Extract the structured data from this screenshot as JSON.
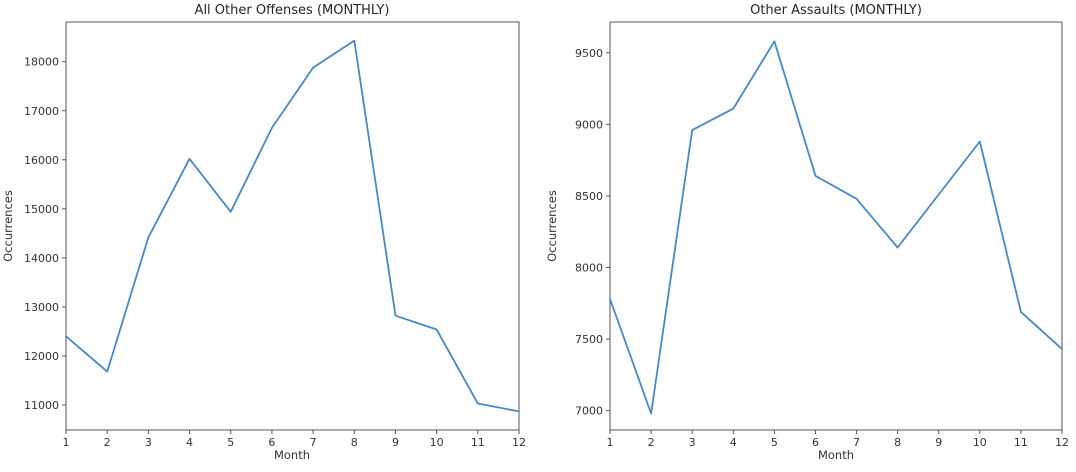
{
  "figure": {
    "background": "#ffffff",
    "text_color": "#333333",
    "spine_color": "#555555"
  },
  "chart_data": [
    {
      "type": "line",
      "title": "All Other Offenses (MONTHLY)",
      "xlabel": "Month",
      "ylabel": "Occurrences",
      "x": [
        1,
        2,
        3,
        4,
        5,
        6,
        7,
        8,
        9,
        10,
        11,
        12
      ],
      "x_tick_labels": [
        "1",
        "2",
        "3",
        "4",
        "5",
        "6",
        "7",
        "8",
        "9",
        "10",
        "11",
        "12"
      ],
      "values": [
        12400,
        11680,
        14420,
        16020,
        14940,
        16650,
        17880,
        18430,
        12820,
        12540,
        11030,
        10870
      ],
      "yticks": [
        11000,
        12000,
        13000,
        14000,
        15000,
        16000,
        17000,
        18000
      ],
      "ylim": [
        10490,
        18810
      ],
      "xlim": [
        1,
        12
      ],
      "line_color": "#4489c8",
      "grid": false,
      "legend": null
    },
    {
      "type": "line",
      "title": "Other Assaults (MONTHLY)",
      "xlabel": "Month",
      "ylabel": "Occurrences",
      "x": [
        1,
        2,
        3,
        4,
        5,
        6,
        7,
        8,
        9,
        10,
        11,
        12
      ],
      "x_tick_labels": [
        "1",
        "2",
        "3",
        "4",
        "5",
        "6",
        "7",
        "8",
        "9",
        "10",
        "11",
        "12"
      ],
      "values": [
        7780,
        6980,
        8960,
        9110,
        9580,
        8640,
        8480,
        8140,
        8510,
        8880,
        7690,
        7430
      ],
      "yticks": [
        7000,
        7500,
        8000,
        8500,
        9000,
        9500
      ],
      "ylim": [
        6865,
        9715
      ],
      "xlim": [
        1,
        12
      ],
      "line_color": "#4489c8",
      "grid": false,
      "legend": null
    }
  ]
}
